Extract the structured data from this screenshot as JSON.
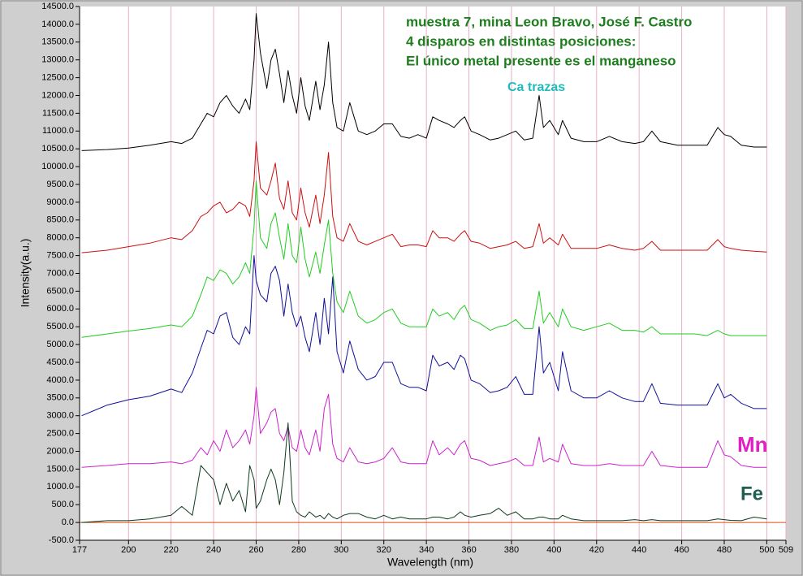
{
  "chart_data": {
    "type": "line",
    "annotations": [
      "muestra 7, mina Leon Bravo, José F. Castro",
      "4 disparos en distintas posiciones:",
      "El único metal presente es el manganeso",
      "Ca trazas",
      "Mn",
      "Fe"
    ],
    "xlabel": "Wavelength (nm)",
    "ylabel": "Intensity(a.u.)",
    "xlim": [
      177,
      509
    ],
    "xticks": [
      177,
      200,
      220,
      240,
      260,
      280,
      300,
      320,
      340,
      360,
      380,
      400,
      420,
      440,
      460,
      480,
      500,
      509
    ],
    "ylim": [
      -500,
      14500
    ],
    "yticks": [
      {
        "value": -500,
        "label": "-500.0"
      },
      {
        "value": 0,
        "label": "0.0"
      },
      {
        "value": 500,
        "label": "500.0"
      },
      {
        "value": 1000,
        "label": "1000.0"
      },
      {
        "value": 1500,
        "label": "1500.0"
      },
      {
        "value": 2000,
        "label": "2000.0"
      },
      {
        "value": 2500,
        "label": "2500.0"
      },
      {
        "value": 3000,
        "label": "3000.0"
      },
      {
        "value": 3500,
        "label": "3500.0"
      },
      {
        "value": 4000,
        "label": "4000.0"
      },
      {
        "value": 4500,
        "label": "4500.0"
      },
      {
        "value": 5000,
        "label": "5000.0"
      },
      {
        "value": 5500,
        "label": "5500.0"
      },
      {
        "value": 6000,
        "label": "6000.0"
      },
      {
        "value": 6500,
        "label": "6500.0"
      },
      {
        "value": 7000,
        "label": "7000.0"
      },
      {
        "value": 7500,
        "label": "7500.0"
      },
      {
        "value": 8000,
        "label": "8000.0"
      },
      {
        "value": 8500,
        "label": "8500.0"
      },
      {
        "value": 9000,
        "label": "9000.0"
      },
      {
        "value": 9500,
        "label": "9500.0"
      },
      {
        "value": 10000,
        "label": "10000.0"
      },
      {
        "value": 10500,
        "label": "10500.0"
      },
      {
        "value": 11000,
        "label": "11000.0"
      },
      {
        "value": 11500,
        "label": "11500.0"
      },
      {
        "value": 12000,
        "label": "12000.0"
      },
      {
        "value": 12500,
        "label": "12500.0"
      },
      {
        "value": 13000,
        "label": "13000.0"
      },
      {
        "value": 13500,
        "label": "13500.0"
      },
      {
        "value": 14000,
        "label": "14000.0"
      },
      {
        "value": 14500,
        "label": "14500.0"
      }
    ],
    "x": [
      178,
      190,
      200,
      210,
      220,
      225,
      230,
      234,
      237,
      240,
      243,
      246,
      249,
      252,
      255,
      257,
      259,
      260,
      262,
      265,
      267,
      269,
      271,
      273,
      275,
      277,
      279,
      281,
      283,
      285,
      288,
      290,
      292,
      294,
      296,
      298,
      301,
      304,
      308,
      312,
      316,
      320,
      324,
      328,
      332,
      336,
      340,
      343,
      346,
      350,
      353,
      356,
      358,
      361,
      365,
      370,
      374,
      378,
      382,
      386,
      390,
      393,
      395,
      398,
      402,
      404,
      408,
      414,
      420,
      426,
      432,
      438,
      442,
      446,
      450,
      458,
      466,
      472,
      477,
      480,
      483,
      488,
      494,
      500
    ],
    "series": [
      {
        "color": "#000000",
        "values": [
          10450,
          10480,
          10520,
          10600,
          10700,
          10650,
          10800,
          11200,
          11500,
          11400,
          11800,
          12000,
          11700,
          11500,
          11900,
          11600,
          13000,
          14300,
          13200,
          12200,
          13000,
          13300,
          12600,
          11800,
          12700,
          12000,
          11500,
          12500,
          11700,
          11300,
          12400,
          11600,
          12300,
          13500,
          11800,
          11100,
          11000,
          11800,
          11000,
          10900,
          11000,
          11200,
          11200,
          10850,
          10800,
          10900,
          10800,
          11400,
          11300,
          11200,
          11100,
          11300,
          11400,
          11000,
          10900,
          10750,
          10800,
          10900,
          11000,
          10750,
          10800,
          12000,
          11100,
          11300,
          10900,
          11300,
          10800,
          10700,
          10700,
          10850,
          10700,
          10650,
          10700,
          11000,
          10700,
          10600,
          10600,
          10600,
          11100,
          10900,
          10850,
          10600,
          10550,
          10550
        ]
      },
      {
        "color": "#cc1010",
        "values": [
          7580,
          7650,
          7750,
          7850,
          8000,
          7950,
          8200,
          8600,
          8700,
          8900,
          9000,
          8700,
          8800,
          9000,
          8900,
          8600,
          9600,
          10700,
          9400,
          9200,
          9600,
          10100,
          9100,
          8800,
          9600,
          8700,
          8500,
          9400,
          8700,
          8300,
          9200,
          8400,
          9200,
          10400,
          8600,
          8000,
          7900,
          8400,
          7900,
          7800,
          7900,
          8000,
          8100,
          7750,
          7800,
          7800,
          7750,
          8200,
          8000,
          8000,
          7900,
          8100,
          8200,
          7900,
          7850,
          7700,
          7750,
          7800,
          7900,
          7700,
          7750,
          8400,
          7850,
          8000,
          7800,
          8100,
          7700,
          7700,
          7700,
          7800,
          7700,
          7650,
          7700,
          7900,
          7650,
          7650,
          7650,
          7650,
          7950,
          7750,
          7700,
          7650,
          7620,
          7600
        ]
      },
      {
        "color": "#22cc22",
        "values": [
          5200,
          5300,
          5380,
          5450,
          5550,
          5500,
          5800,
          6400,
          6900,
          6800,
          7100,
          7000,
          6700,
          6900,
          7300,
          7000,
          8300,
          9600,
          8000,
          7700,
          8400,
          8700,
          8000,
          7400,
          8400,
          7500,
          7300,
          8300,
          7400,
          6900,
          7600,
          7000,
          7800,
          8500,
          7000,
          6200,
          5900,
          6500,
          5800,
          5600,
          5700,
          5900,
          6000,
          5600,
          5500,
          5500,
          5500,
          6000,
          5800,
          5900,
          5700,
          6000,
          6100,
          5700,
          5600,
          5400,
          5500,
          5550,
          5700,
          5450,
          5450,
          6500,
          5600,
          5900,
          5500,
          6000,
          5500,
          5400,
          5500,
          5600,
          5400,
          5400,
          5350,
          5500,
          5300,
          5300,
          5300,
          5250,
          5400,
          5300,
          5250,
          5250,
          5250,
          5250
        ]
      },
      {
        "color": "#10109a",
        "values": [
          3000,
          3300,
          3450,
          3550,
          3750,
          3650,
          4200,
          4900,
          5400,
          5300,
          5800,
          5900,
          5200,
          5000,
          5500,
          5300,
          7500,
          6800,
          6400,
          6200,
          7000,
          7200,
          6800,
          5800,
          6700,
          5900,
          5500,
          5800,
          5200,
          4800,
          5900,
          5000,
          6300,
          5300,
          6900,
          4800,
          4200,
          5100,
          4300,
          4000,
          4100,
          4500,
          4500,
          3900,
          3800,
          3800,
          3700,
          4700,
          4400,
          4500,
          4300,
          4700,
          4600,
          4000,
          3900,
          3650,
          3700,
          3800,
          4100,
          3600,
          3600,
          5500,
          4200,
          4500,
          3700,
          4800,
          3700,
          3500,
          3500,
          3700,
          3500,
          3400,
          3400,
          3900,
          3350,
          3300,
          3300,
          3300,
          3900,
          3500,
          3600,
          3350,
          3200,
          3200
        ]
      },
      {
        "color": "#cc22cc",
        "values": [
          1550,
          1600,
          1650,
          1650,
          1700,
          1650,
          1750,
          2100,
          1900,
          2300,
          2000,
          2600,
          2100,
          2300,
          2600,
          2200,
          3000,
          3800,
          2500,
          2800,
          3100,
          3200,
          2500,
          2300,
          2700,
          2100,
          2000,
          2600,
          2100,
          1900,
          2600,
          2000,
          3200,
          3600,
          2200,
          1800,
          1700,
          2100,
          1700,
          1650,
          1700,
          1800,
          2100,
          1700,
          1650,
          1650,
          1650,
          2300,
          1900,
          2100,
          1900,
          2200,
          2300,
          1800,
          1750,
          1600,
          1650,
          1700,
          1800,
          1600,
          1600,
          2400,
          1700,
          1800,
          1700,
          2200,
          1650,
          1600,
          1600,
          1650,
          1600,
          1600,
          1600,
          2000,
          1600,
          1550,
          1550,
          1550,
          2300,
          1900,
          1850,
          1600,
          1550,
          1550
        ]
      },
      {
        "color": "#0d3b1d",
        "values": [
          0,
          50,
          50,
          100,
          200,
          450,
          200,
          1600,
          1400,
          1200,
          500,
          1100,
          600,
          900,
          300,
          1600,
          1200,
          400,
          600,
          1200,
          1500,
          1200,
          500,
          1400,
          2800,
          600,
          300,
          200,
          150,
          300,
          150,
          200,
          100,
          250,
          150,
          100,
          200,
          250,
          250,
          150,
          100,
          200,
          100,
          150,
          100,
          100,
          100,
          150,
          150,
          100,
          150,
          300,
          200,
          150,
          200,
          250,
          400,
          200,
          300,
          100,
          100,
          150,
          150,
          100,
          100,
          200,
          100,
          50,
          50,
          50,
          50,
          80,
          50,
          80,
          50,
          50,
          50,
          50,
          100,
          80,
          60,
          50,
          150,
          100
        ]
      }
    ]
  }
}
